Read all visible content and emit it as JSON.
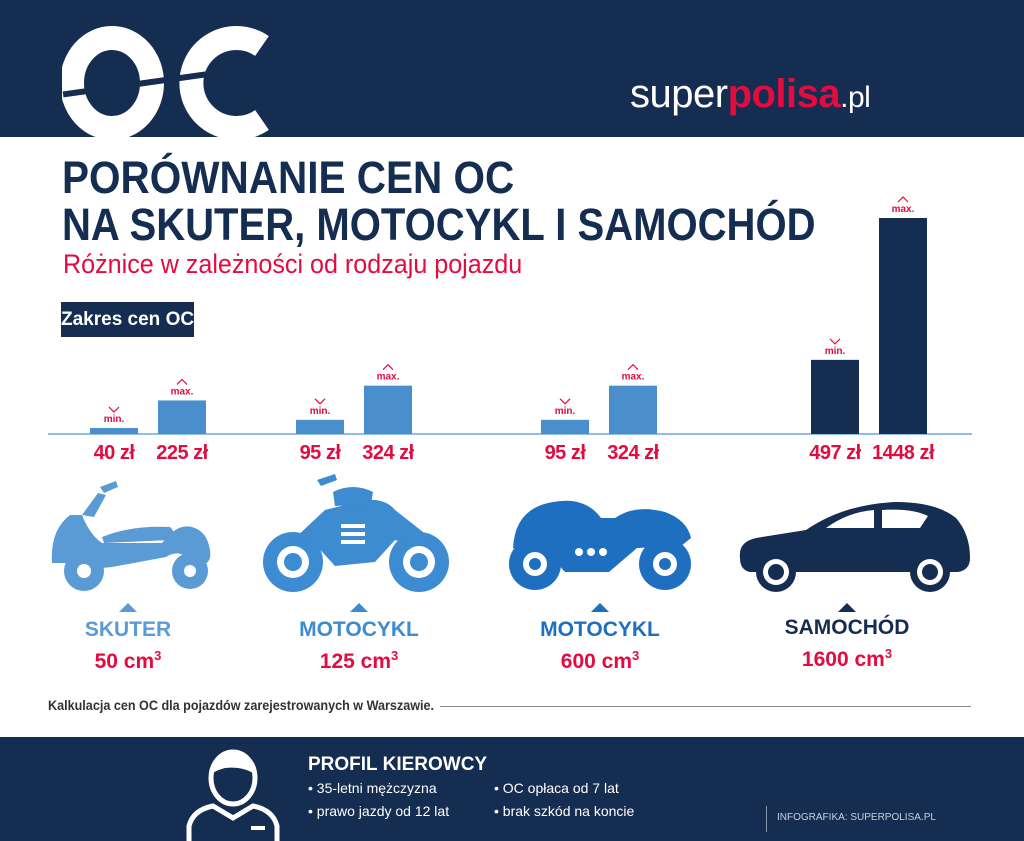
{
  "header": {
    "logo_text": "OC",
    "brand_part1": "super",
    "brand_part2": "polisa",
    "brand_part3": ".pl"
  },
  "title_line1": "PORÓWNANIE CEN OC",
  "title_line2": "NA SKUTER, MOTOCYKL I SAMOCHÓD",
  "subtitle": "Różnice w zależności od rodzaju pojazdu",
  "range_label": "Zakres cen OC:",
  "chart_data": {
    "type": "bar",
    "title": "PORÓWNANIE CEN OC NA SKUTER, MOTOCYKL I SAMOCHÓD",
    "categories": [
      "SKUTER 50 cm³",
      "MOTOCYKL 125 cm³",
      "MOTOCYKL 600 cm³",
      "SAMOCHÓD 1600 cm³"
    ],
    "series": [
      {
        "name": "min.",
        "values": [
          40,
          95,
          95,
          497
        ],
        "labels": [
          "40 zł",
          "95 zł",
          "95 zł",
          "497 zł"
        ]
      },
      {
        "name": "max.",
        "values": [
          225,
          324,
          324,
          1448
        ],
        "labels": [
          "225 zł",
          "324 zł",
          "324 zł",
          "1448 zł"
        ]
      }
    ],
    "colors": [
      "#4a8fcc",
      "#4a8fcc",
      "#4a8fcc",
      "#142d50"
    ],
    "label_color": "#e30b3f",
    "ylim": [
      0,
      1448
    ],
    "grid": false
  },
  "vehicles": [
    {
      "name": "SKUTER",
      "capacity": "50 cm",
      "sup": "3",
      "color": "#5b9bd5"
    },
    {
      "name": "MOTOCYKL",
      "capacity": "125 cm",
      "sup": "3",
      "color": "#3d8bd0"
    },
    {
      "name": "MOTOCYKL",
      "capacity": "600 cm",
      "sup": "3",
      "color": "#1f6fc1"
    },
    {
      "name": "SAMOCHÓD",
      "capacity": "1600 cm",
      "sup": "3",
      "color": "#142d50"
    }
  ],
  "note": "Kalkulacja cen OC dla pojazdów zarejestrowanych w Warszawie.",
  "profile": {
    "title": "PROFIL KIEROWCY",
    "items": [
      "• 35-letni mężczyzna",
      "• prawo  jazdy od 12 lat",
      "• OC opłaca od 7 lat",
      "• brak szkód na koncie"
    ]
  },
  "credit": "INFOGRAFIKA: SUPERPOLISA.PL"
}
